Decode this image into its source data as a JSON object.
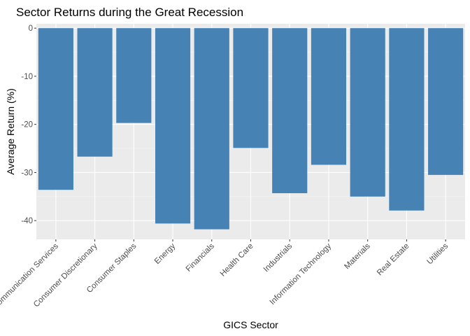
{
  "chart_data": {
    "type": "bar",
    "title": "Sector Returns during the Great Recession",
    "xlabel": "GICS Sector",
    "ylabel": "Average Return (%)",
    "categories": [
      "Communication Services",
      "Consumer Discretionary",
      "Consumer Staples",
      "Energy",
      "Financials",
      "Health Care",
      "Industrials",
      "Information Technology",
      "Materials",
      "Real Estate",
      "Utilities"
    ],
    "values": [
      -33.6,
      -26.7,
      -19.7,
      -40.6,
      -41.8,
      -24.9,
      -34.3,
      -28.4,
      -35.0,
      -37.9,
      -30.5
    ],
    "ylim": [
      -43.9,
      0.9
    ],
    "yticks": [
      0,
      -10,
      -20,
      -30,
      -40
    ],
    "ytick_labels": [
      "0",
      "-10",
      "-20",
      "-30",
      "-40"
    ],
    "grid": true,
    "colors": {
      "bar": "#4682B4",
      "panel": "#EBEBEB",
      "grid_major": "#FFFFFF",
      "grid_minor": "#F5F5F5",
      "tick_text": "#4D4D4D",
      "tick_mark": "#333333"
    }
  }
}
